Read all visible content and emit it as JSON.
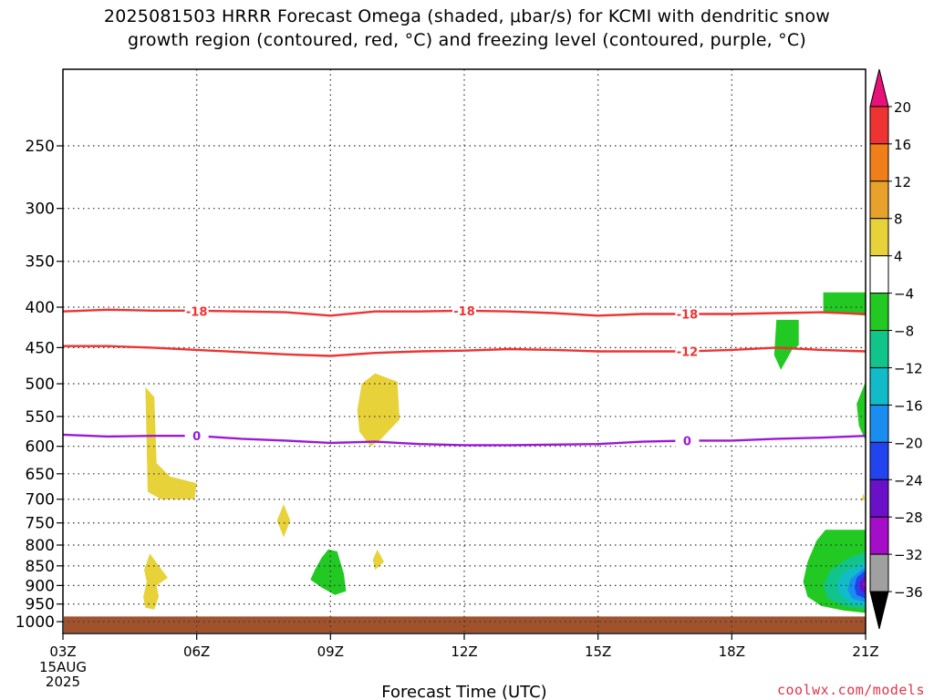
{
  "title": {
    "line1": "2025081503 HRRR Forecast Omega (shaded, μbar/s) for KCMI with dendritic snow",
    "line2": "growth region (contoured, red, °C) and freezing level (contoured, purple, °C)"
  },
  "credit": "coolwx.com/models",
  "chart_data": {
    "type": "contour",
    "xlabel": "Forecast Time (UTC)",
    "x_ticks": [
      {
        "hour": 3,
        "label": "03Z"
      },
      {
        "hour": 6,
        "label": "06Z"
      },
      {
        "hour": 9,
        "label": "09Z"
      },
      {
        "hour": 12,
        "label": "12Z"
      },
      {
        "hour": 15,
        "label": "15Z"
      },
      {
        "hour": 18,
        "label": "18Z"
      },
      {
        "hour": 21,
        "label": "21Z"
      }
    ],
    "x_date_label": [
      "15AUG",
      "2025"
    ],
    "xlim": [
      3,
      21
    ],
    "ylabel": "",
    "y_scale": "log-pressure",
    "ylim": [
      1035,
      200
    ],
    "y_ticks": [
      250,
      300,
      350,
      400,
      450,
      500,
      550,
      600,
      650,
      700,
      750,
      800,
      850,
      900,
      950,
      1000
    ],
    "grid": true,
    "ground": {
      "color": "#a0522d",
      "top_pressure": 985
    },
    "colorbar": {
      "levels": [
        "20",
        "16",
        "12",
        "8",
        "4",
        "−4",
        "−8",
        "−12",
        "−16",
        "−20",
        "−24",
        "−28",
        "−32",
        "−36"
      ],
      "colors": [
        "#e8117a",
        "#ee3333",
        "#f07f1a",
        "#e8a22c",
        "#e8d23a",
        "#ffffff",
        "#22c922",
        "#11c48a",
        "#11bcc8",
        "#1a8ef0",
        "#2244ee",
        "#6a11c8",
        "#a50ec8",
        "#a0a0a0",
        "#000000"
      ]
    },
    "contours": [
      {
        "name": "-18",
        "color": "#ee3333",
        "points": [
          [
            3,
            405
          ],
          [
            4,
            403
          ],
          [
            5,
            404
          ],
          [
            6,
            404
          ],
          [
            7,
            405
          ],
          [
            8,
            406
          ],
          [
            9,
            410
          ],
          [
            10,
            405
          ],
          [
            11,
            405
          ],
          [
            12,
            404
          ],
          [
            13,
            405
          ],
          [
            14,
            407
          ],
          [
            15,
            410
          ],
          [
            16,
            408
          ],
          [
            17,
            408
          ],
          [
            18,
            408
          ],
          [
            19,
            407
          ],
          [
            20,
            406
          ],
          [
            21,
            408
          ]
        ],
        "labels": [
          [
            6,
            405
          ],
          [
            12,
            404
          ],
          [
            17,
            408
          ]
        ]
      },
      {
        "name": "-12",
        "color": "#ee3333",
        "points": [
          [
            3,
            448
          ],
          [
            4,
            448
          ],
          [
            5,
            450
          ],
          [
            6,
            453
          ],
          [
            7,
            456
          ],
          [
            8,
            459
          ],
          [
            9,
            461
          ],
          [
            10,
            457
          ],
          [
            11,
            455
          ],
          [
            12,
            454
          ],
          [
            13,
            452
          ],
          [
            14,
            453
          ],
          [
            15,
            455
          ],
          [
            16,
            455
          ],
          [
            17,
            455
          ],
          [
            18,
            453
          ],
          [
            19,
            450
          ],
          [
            20,
            453
          ],
          [
            21,
            455
          ]
        ],
        "labels": [
          [
            17,
            455
          ]
        ]
      },
      {
        "name": "0",
        "color": "#9b19d6",
        "points": [
          [
            3,
            580
          ],
          [
            4,
            583
          ],
          [
            5,
            582
          ],
          [
            6,
            582
          ],
          [
            7,
            587
          ],
          [
            8,
            590
          ],
          [
            9,
            594
          ],
          [
            10,
            592
          ],
          [
            11,
            596
          ],
          [
            12,
            598
          ],
          [
            13,
            598
          ],
          [
            14,
            597
          ],
          [
            15,
            596
          ],
          [
            16,
            592
          ],
          [
            17,
            590
          ],
          [
            18,
            590
          ],
          [
            19,
            587
          ],
          [
            20,
            585
          ],
          [
            21,
            582
          ]
        ],
        "labels": [
          [
            6,
            582
          ],
          [
            17,
            590
          ]
        ]
      }
    ],
    "shaded_regions": [
      {
        "value": 4,
        "color": "#e8d23a",
        "points": [
          [
            4.85,
            505
          ],
          [
            5.05,
            520
          ],
          [
            5.1,
            630
          ],
          [
            5.4,
            655
          ],
          [
            6.0,
            668
          ],
          [
            5.95,
            700
          ],
          [
            5.2,
            700
          ],
          [
            4.9,
            685
          ]
        ]
      },
      {
        "value": 4,
        "color": "#e8d23a",
        "points": [
          [
            10.0,
            485
          ],
          [
            10.5,
            497
          ],
          [
            10.55,
            555
          ],
          [
            10.1,
            590
          ],
          [
            9.9,
            600
          ],
          [
            9.65,
            575
          ],
          [
            9.6,
            540
          ],
          [
            9.7,
            500
          ]
        ]
      },
      {
        "value": 4,
        "color": "#e8d23a",
        "points": [
          [
            7.95,
            710
          ],
          [
            8.1,
            745
          ],
          [
            7.95,
            782
          ],
          [
            7.8,
            745
          ]
        ]
      },
      {
        "value": 4,
        "color": "#e8d23a",
        "points": [
          [
            4.95,
            820
          ],
          [
            5.15,
            850
          ],
          [
            5.35,
            880
          ],
          [
            5.1,
            900
          ],
          [
            5.15,
            930
          ],
          [
            5.05,
            965
          ],
          [
            4.85,
            960
          ],
          [
            4.8,
            930
          ],
          [
            4.88,
            890
          ],
          [
            4.82,
            860
          ]
        ]
      },
      {
        "value": 4,
        "color": "#e8d23a",
        "points": [
          [
            10.05,
            810
          ],
          [
            10.2,
            840
          ],
          [
            10.0,
            860
          ],
          [
            9.95,
            835
          ]
        ]
      },
      {
        "value": 4,
        "color": "#e8d23a",
        "points": [
          [
            20.95,
            688
          ],
          [
            20.98,
            700
          ],
          [
            20.9,
            705
          ]
        ]
      },
      {
        "value": -4,
        "color": "#22c922",
        "points": [
          [
            8.95,
            810
          ],
          [
            9.15,
            815
          ],
          [
            9.3,
            870
          ],
          [
            9.35,
            915
          ],
          [
            9.1,
            925
          ],
          [
            8.8,
            905
          ],
          [
            8.55,
            885
          ],
          [
            8.65,
            860
          ],
          [
            8.8,
            830
          ]
        ]
      },
      {
        "value": -4,
        "color": "#22c922",
        "points": [
          [
            19.0,
            415
          ],
          [
            19.5,
            415
          ],
          [
            19.5,
            447
          ],
          [
            19.35,
            453
          ],
          [
            19.1,
            480
          ],
          [
            18.95,
            460
          ]
        ]
      },
      {
        "value": -4,
        "color": "#22c922",
        "points": [
          [
            20.05,
            383
          ],
          [
            21.0,
            383
          ],
          [
            21.0,
            410
          ],
          [
            20.5,
            408
          ],
          [
            20.05,
            405
          ]
        ]
      },
      {
        "value": -4,
        "color": "#22c922",
        "points": [
          [
            21.0,
            497
          ],
          [
            20.8,
            530
          ],
          [
            20.85,
            565
          ],
          [
            21.0,
            590
          ]
        ]
      },
      {
        "value": -4,
        "color": "#22c922",
        "points": [
          [
            20.1,
            765
          ],
          [
            21.0,
            765
          ],
          [
            21.0,
            975
          ],
          [
            20.5,
            968
          ],
          [
            20.0,
            955
          ],
          [
            19.7,
            930
          ],
          [
            19.6,
            890
          ],
          [
            19.7,
            840
          ],
          [
            19.9,
            790
          ]
        ]
      },
      {
        "value": -8,
        "color": "#11c48a",
        "points": [
          [
            20.6,
            832
          ],
          [
            21.0,
            815
          ],
          [
            21.0,
            965
          ],
          [
            20.5,
            955
          ],
          [
            20.15,
            935
          ],
          [
            20.05,
            900
          ],
          [
            20.2,
            862
          ]
        ]
      },
      {
        "value": -12,
        "color": "#11bcc8",
        "points": [
          [
            20.8,
            850
          ],
          [
            21.0,
            840
          ],
          [
            21.0,
            955
          ],
          [
            20.6,
            945
          ],
          [
            20.4,
            920
          ],
          [
            20.35,
            895
          ],
          [
            20.5,
            868
          ]
        ]
      },
      {
        "value": -16,
        "color": "#1a8ef0",
        "points": [
          [
            20.9,
            860
          ],
          [
            21.0,
            855
          ],
          [
            21.0,
            945
          ],
          [
            20.7,
            935
          ],
          [
            20.6,
            912
          ],
          [
            20.65,
            885
          ]
        ]
      },
      {
        "value": -20,
        "color": "#2244ee",
        "points": [
          [
            20.95,
            865
          ],
          [
            21.0,
            862
          ],
          [
            21.0,
            935
          ],
          [
            20.8,
            925
          ],
          [
            20.75,
            905
          ],
          [
            20.8,
            880
          ]
        ]
      },
      {
        "value": -24,
        "color": "#6a11c8",
        "points": [
          [
            21.0,
            872
          ],
          [
            21.0,
            922
          ],
          [
            20.88,
            912
          ],
          [
            20.86,
            892
          ]
        ]
      },
      {
        "value": -28,
        "color": "#a50ec8",
        "points": [
          [
            21.0,
            882
          ],
          [
            21.0,
            906
          ],
          [
            20.93,
            897
          ]
        ]
      }
    ]
  }
}
